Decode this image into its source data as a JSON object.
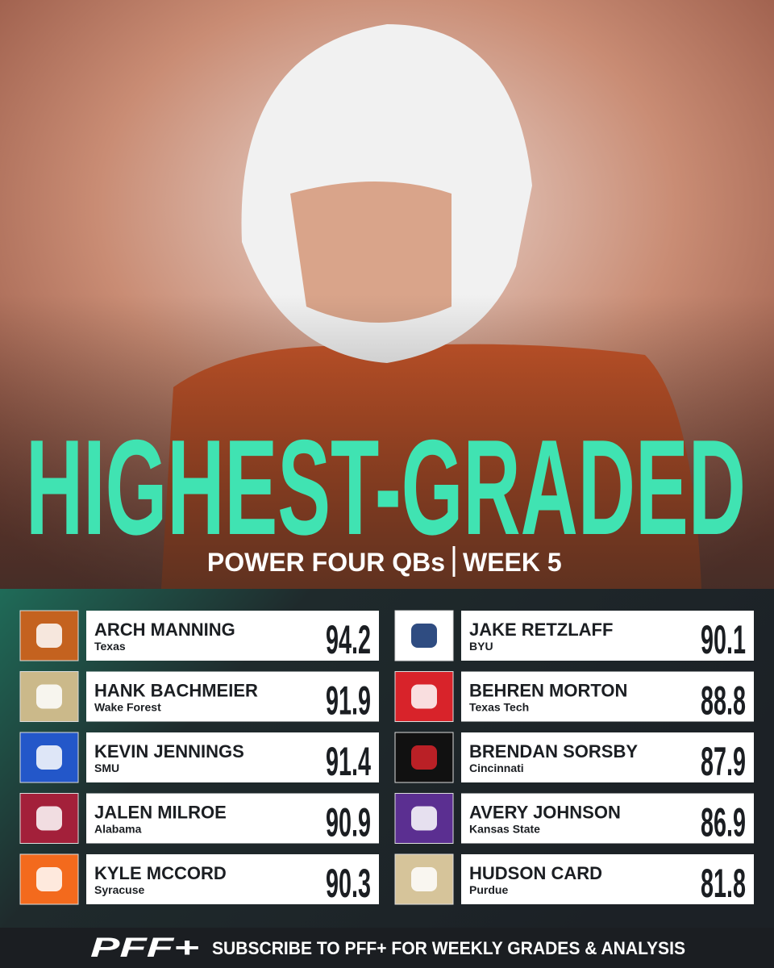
{
  "title": "HIGHEST-GRADED",
  "subtitle": {
    "left": "POWER FOUR QBs",
    "right": "WEEK 5"
  },
  "players": [
    {
      "name": "ARCH MANNING",
      "team": "Texas",
      "grade": 94.2,
      "color": "#c4621f"
    },
    {
      "name": "HANK BACHMEIER",
      "team": "Wake Forest",
      "grade": 91.9,
      "color": "#cbb98a"
    },
    {
      "name": "KEVIN JENNINGS",
      "team": "SMU",
      "grade": 91.4,
      "color": "#2357c9"
    },
    {
      "name": "JALEN MILROE",
      "team": "Alabama",
      "grade": 90.9,
      "color": "#a3203a"
    },
    {
      "name": "KYLE MCCORD",
      "team": "Syracuse",
      "grade": 90.3,
      "color": "#f36a1d"
    },
    {
      "name": "JAKE RETZLAFF",
      "team": "BYU",
      "grade": 90.1,
      "color": "#ffffff"
    },
    {
      "name": "BEHREN MORTON",
      "team": "Texas Tech",
      "grade": 88.8,
      "color": "#d8232a"
    },
    {
      "name": "BRENDAN SORSBY",
      "team": "Cincinnati",
      "grade": 87.9,
      "color": "#111111"
    },
    {
      "name": "AVERY JOHNSON",
      "team": "Kansas State",
      "grade": 86.9,
      "color": "#5b2f91"
    },
    {
      "name": "HUDSON CARD",
      "team": "Purdue",
      "grade": 81.8,
      "color": "#d6c49a"
    }
  ],
  "footer": {
    "logo": "PFF+",
    "text": "SUBSCRIBE TO PFF+ FOR WEEKLY GRADES & ANALYSIS"
  }
}
